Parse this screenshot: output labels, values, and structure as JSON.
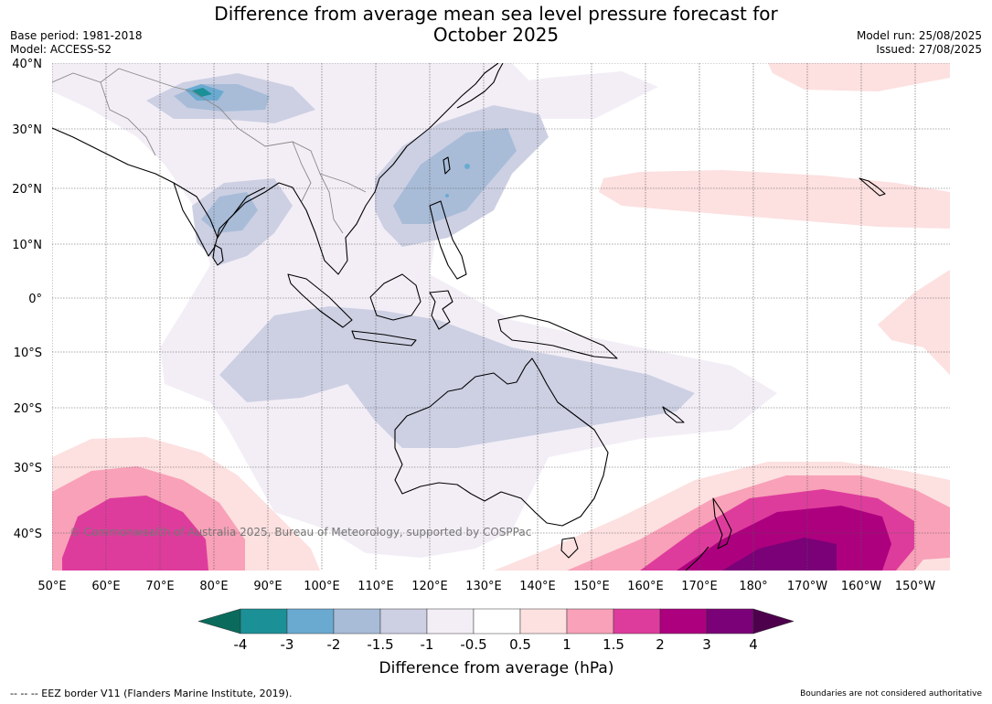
{
  "header": {
    "title_line1": "Difference from average mean sea level pressure forecast for",
    "title_line2": "October 2025",
    "base_period": "Base period: 1981-2018",
    "model": "Model: ACCESS-S2",
    "model_run": "Model run: 25/08/2025",
    "issued": "Issued: 27/08/2025"
  },
  "map": {
    "lat_labels": [
      "40°N",
      "30°N",
      "20°N",
      "10°N",
      "0°",
      "10°S",
      "20°S",
      "30°S",
      "40°S"
    ],
    "lon_labels": [
      "50°E",
      "60°E",
      "70°E",
      "80°E",
      "90°E",
      "100°E",
      "110°E",
      "120°E",
      "130°E",
      "140°E",
      "150°E",
      "160°E",
      "170°E",
      "180°",
      "170°W",
      "160°W",
      "150°W"
    ],
    "copyright": "© Commonwealth of Australia 2025, Bureau of Meteorology, supported by COSPPac"
  },
  "colorbar": {
    "label": "Difference from average (hPa)",
    "ticks": [
      "-4",
      "-3",
      "-2",
      "-1.5",
      "-1",
      "-0.5",
      "0.5",
      "1",
      "1.5",
      "2",
      "3",
      "4"
    ],
    "colors": [
      "#1b9096",
      "#6aaad1",
      "#a8bcd8",
      "#cdd0e3",
      "#f3eef6",
      "#ffffff",
      "#fde0e0",
      "#f8a1b8",
      "#de3c9c",
      "#ad007f",
      "#7a0177"
    ],
    "under_color": "#0a6b5c",
    "over_color": "#4d004b"
  },
  "footer": {
    "eez_note": "--  --  -- EEZ border V11 (Flanders Marine Institute, 2019).",
    "disclaimer": "Boundaries are not considered authoritative"
  }
}
